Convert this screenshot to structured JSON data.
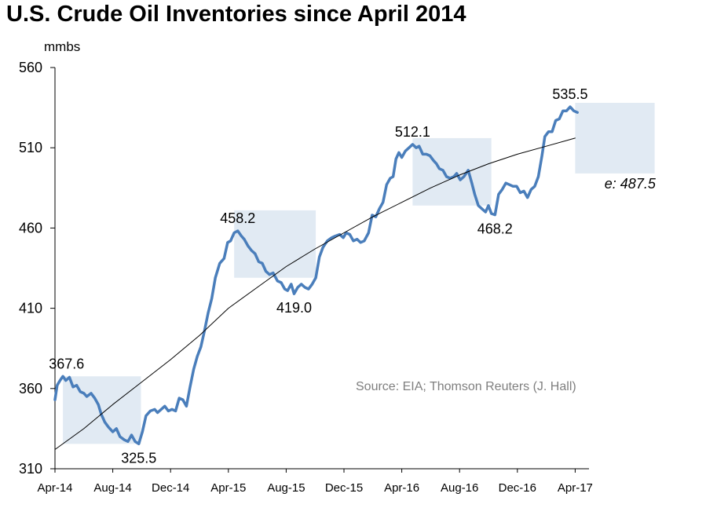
{
  "title": "U.S. Crude Oil Inventories since April 2014",
  "source": "Source: EIA; Thomson Reuters (J. Hall)",
  "chart_data": {
    "type": "line",
    "title": "U.S. Crude Oil Inventories since April 2014",
    "ylabel": "mmbs",
    "xlabel": "",
    "ylim": [
      310,
      560
    ],
    "yticks": [
      310,
      360,
      410,
      460,
      510,
      560
    ],
    "yticks_labels": [
      "310",
      "360",
      "410",
      "460",
      "510",
      "560"
    ],
    "x_range_months": [
      0,
      37
    ],
    "xticks": [
      {
        "label": "Apr-14",
        "month": 0
      },
      {
        "label": "Aug-14",
        "month": 4
      },
      {
        "label": "Dec-14",
        "month": 8
      },
      {
        "label": "Apr-15",
        "month": 12
      },
      {
        "label": "Aug-15",
        "month": 16
      },
      {
        "label": "Dec-15",
        "month": 20
      },
      {
        "label": "Apr-16",
        "month": 24
      },
      {
        "label": "Aug-16",
        "month": 28
      },
      {
        "label": "Dec-16",
        "month": 32
      },
      {
        "label": "Apr-17",
        "month": 36
      }
    ],
    "series": [
      {
        "name": "U.S. Crude Oil Inventories",
        "color": "#4a7ebb",
        "points": [
          [
            0.0,
            353
          ],
          [
            0.15,
            362
          ],
          [
            0.35,
            365
          ],
          [
            0.55,
            367.6
          ],
          [
            0.75,
            365
          ],
          [
            1.0,
            367
          ],
          [
            1.25,
            361
          ],
          [
            1.5,
            362
          ],
          [
            1.75,
            358
          ],
          [
            2.0,
            357
          ],
          [
            2.2,
            355
          ],
          [
            2.5,
            357
          ],
          [
            2.75,
            354
          ],
          [
            3.0,
            350
          ],
          [
            3.2,
            344
          ],
          [
            3.45,
            339
          ],
          [
            3.7,
            336
          ],
          [
            4.0,
            333
          ],
          [
            4.25,
            335
          ],
          [
            4.5,
            330
          ],
          [
            4.8,
            328
          ],
          [
            5.05,
            327
          ],
          [
            5.3,
            331
          ],
          [
            5.55,
            327
          ],
          [
            5.8,
            325.5
          ],
          [
            6.05,
            333
          ],
          [
            6.3,
            343
          ],
          [
            6.6,
            346
          ],
          [
            6.9,
            347
          ],
          [
            7.1,
            345
          ],
          [
            7.35,
            347
          ],
          [
            7.6,
            349
          ],
          [
            7.85,
            346
          ],
          [
            8.1,
            347
          ],
          [
            8.35,
            346
          ],
          [
            8.6,
            354
          ],
          [
            8.85,
            353
          ],
          [
            9.1,
            349
          ],
          [
            9.35,
            361
          ],
          [
            9.6,
            372
          ],
          [
            9.85,
            380
          ],
          [
            10.1,
            386
          ],
          [
            10.35,
            396
          ],
          [
            10.6,
            407
          ],
          [
            10.85,
            416
          ],
          [
            11.1,
            429
          ],
          [
            11.4,
            438
          ],
          [
            11.7,
            441
          ],
          [
            11.95,
            451
          ],
          [
            12.15,
            452
          ],
          [
            12.4,
            457
          ],
          [
            12.65,
            458.2
          ],
          [
            12.9,
            455
          ],
          [
            13.1,
            453
          ],
          [
            13.35,
            449
          ],
          [
            13.6,
            446
          ],
          [
            13.85,
            444
          ],
          [
            14.1,
            439
          ],
          [
            14.35,
            438
          ],
          [
            14.6,
            433
          ],
          [
            14.85,
            431
          ],
          [
            15.1,
            432
          ],
          [
            15.4,
            427
          ],
          [
            15.65,
            426
          ],
          [
            15.9,
            422
          ],
          [
            16.1,
            421
          ],
          [
            16.35,
            425
          ],
          [
            16.55,
            419
          ],
          [
            16.8,
            423
          ],
          [
            17.05,
            425
          ],
          [
            17.3,
            423
          ],
          [
            17.55,
            422
          ],
          [
            17.8,
            425
          ],
          [
            18.05,
            429
          ],
          [
            18.3,
            442
          ],
          [
            18.55,
            448
          ],
          [
            18.85,
            452
          ],
          [
            19.15,
            454
          ],
          [
            19.4,
            455
          ],
          [
            19.7,
            456
          ],
          [
            19.95,
            454
          ],
          [
            20.15,
            457
          ],
          [
            20.4,
            456
          ],
          [
            20.65,
            452
          ],
          [
            20.9,
            453
          ],
          [
            21.15,
            451
          ],
          [
            21.4,
            452
          ],
          [
            21.7,
            457
          ],
          [
            21.95,
            468
          ],
          [
            22.2,
            467
          ],
          [
            22.45,
            472
          ],
          [
            22.7,
            476
          ],
          [
            22.95,
            487
          ],
          [
            23.2,
            491
          ],
          [
            23.4,
            492
          ],
          [
            23.6,
            503
          ],
          [
            23.8,
            507
          ],
          [
            24.0,
            504
          ],
          [
            24.25,
            508
          ],
          [
            24.5,
            510
          ],
          [
            24.75,
            512.1
          ],
          [
            25.0,
            510
          ],
          [
            25.2,
            511
          ],
          [
            25.45,
            506
          ],
          [
            25.7,
            506
          ],
          [
            25.95,
            505
          ],
          [
            26.2,
            502
          ],
          [
            26.4,
            500
          ],
          [
            26.6,
            497
          ],
          [
            26.85,
            496
          ],
          [
            27.1,
            492
          ],
          [
            27.35,
            491
          ],
          [
            27.6,
            492
          ],
          [
            27.8,
            494
          ],
          [
            28.05,
            490
          ],
          [
            28.3,
            492
          ],
          [
            28.6,
            496
          ],
          [
            28.85,
            488
          ],
          [
            29.05,
            481
          ],
          [
            29.3,
            474
          ],
          [
            29.55,
            472
          ],
          [
            29.8,
            470
          ],
          [
            30.0,
            474
          ],
          [
            30.2,
            469
          ],
          [
            30.45,
            468.2
          ],
          [
            30.7,
            481
          ],
          [
            30.95,
            484
          ],
          [
            31.2,
            488
          ],
          [
            31.45,
            487
          ],
          [
            31.7,
            486
          ],
          [
            31.95,
            486
          ],
          [
            32.2,
            482
          ],
          [
            32.45,
            483
          ],
          [
            32.7,
            479
          ],
          [
            32.95,
            484
          ],
          [
            33.2,
            486
          ],
          [
            33.45,
            492
          ],
          [
            33.7,
            505
          ],
          [
            33.9,
            517
          ],
          [
            34.15,
            520
          ],
          [
            34.4,
            520
          ],
          [
            34.65,
            527
          ],
          [
            34.9,
            528
          ],
          [
            35.15,
            533
          ],
          [
            35.4,
            533
          ],
          [
            35.65,
            535.5
          ],
          [
            35.9,
            533
          ],
          [
            36.15,
            532
          ]
        ]
      },
      {
        "name": "Trend",
        "color": "#000000",
        "points": [
          [
            0,
            322
          ],
          [
            2,
            335
          ],
          [
            4,
            350
          ],
          [
            6,
            364
          ],
          [
            8,
            378
          ],
          [
            10,
            393
          ],
          [
            12,
            410
          ],
          [
            14,
            423
          ],
          [
            16,
            436
          ],
          [
            18,
            447
          ],
          [
            20,
            457
          ],
          [
            22,
            467
          ],
          [
            24,
            476
          ],
          [
            26,
            485
          ],
          [
            28,
            493
          ],
          [
            30,
            500
          ],
          [
            32,
            506
          ],
          [
            34,
            511
          ],
          [
            36,
            516
          ]
        ]
      }
    ],
    "shaded_regions": [
      {
        "x0": 0.55,
        "x1": 5.95,
        "y0": 325.5,
        "y1": 367.6
      },
      {
        "x0": 12.4,
        "x1": 18.05,
        "y0": 429,
        "y1": 471
      },
      {
        "x0": 24.75,
        "x1": 30.2,
        "y0": 474,
        "y1": 516
      },
      {
        "x0": 36.0,
        "x1": 41.5,
        "y0": 494,
        "y1": 538
      }
    ],
    "annotations": [
      {
        "text": "367.6",
        "x": 0.8,
        "y": 367.6,
        "pos": "above"
      },
      {
        "text": "325.5",
        "x": 5.8,
        "y": 325.5,
        "pos": "below"
      },
      {
        "text": "458.2",
        "x": 12.65,
        "y": 458.2,
        "pos": "above"
      },
      {
        "text": "419.0",
        "x": 16.55,
        "y": 419,
        "pos": "below"
      },
      {
        "text": "512.1",
        "x": 24.75,
        "y": 512.1,
        "pos": "above"
      },
      {
        "text": "468.2",
        "x": 30.45,
        "y": 468.2,
        "pos": "below"
      },
      {
        "text": "535.5",
        "x": 35.65,
        "y": 535.5,
        "pos": "above"
      },
      {
        "text": "e: 487.5",
        "x": 39.8,
        "y": 487.5,
        "pos": "below-italic"
      }
    ]
  }
}
